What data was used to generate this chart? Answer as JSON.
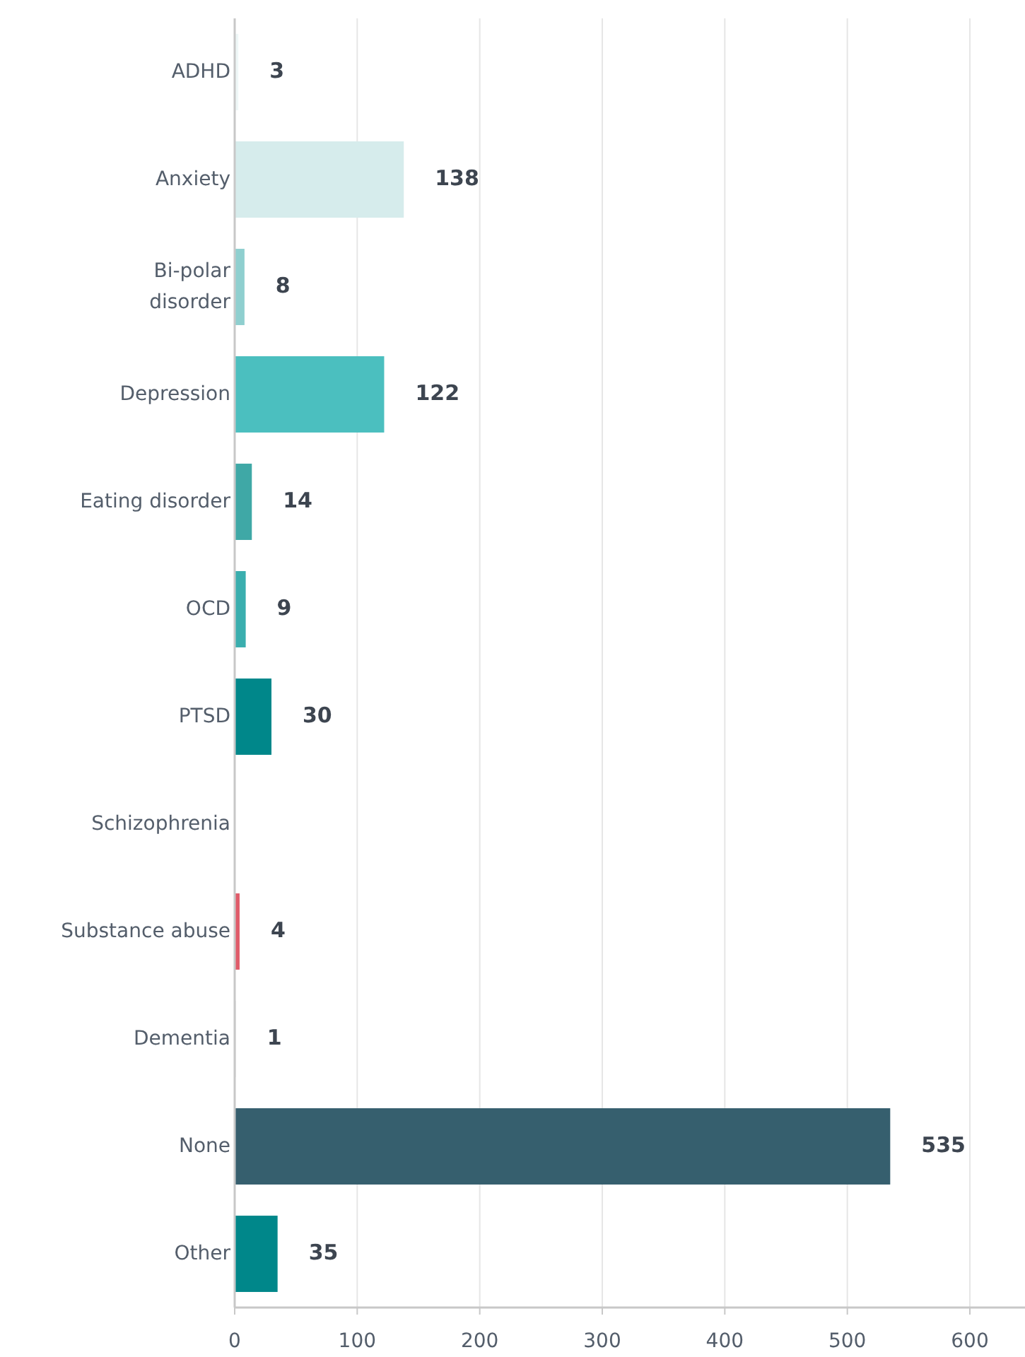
{
  "chart_data": {
    "type": "bar",
    "orientation": "horizontal",
    "categories": [
      "ADHD",
      "Anxiety",
      "Bi-polar disorder",
      "Depression",
      "Eating disorder",
      "OCD",
      "PTSD",
      "Schizophrenia",
      "Substance abuse",
      "Dementia",
      "None",
      "Other"
    ],
    "values": [
      3,
      138,
      8,
      122,
      14,
      9,
      30,
      0,
      4,
      1,
      535,
      35
    ],
    "value_labels": [
      "3",
      "138",
      "8",
      "122",
      "14",
      "9",
      "30",
      null,
      "4",
      "1",
      "535",
      "35"
    ],
    "colors": [
      "#eef7f7",
      "#d6ecec",
      "#8fcfcf",
      "#4bbfbf",
      "#3fa8a6",
      "#3aaeae",
      "#00878a",
      "#cccccc",
      "#e05c6a",
      "#e8e8e8",
      "#365f6e",
      "#00878a"
    ],
    "xlim": [
      0,
      645
    ],
    "xticks": [
      0,
      100,
      200,
      300,
      400,
      500,
      600
    ],
    "grid": "x"
  }
}
